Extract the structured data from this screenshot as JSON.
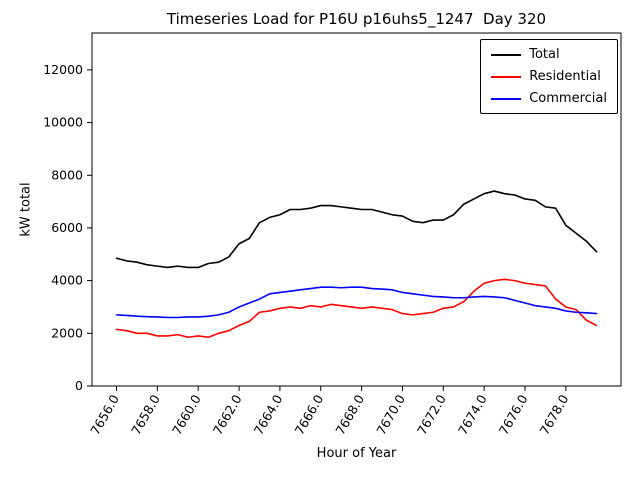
{
  "chart_data": {
    "type": "line",
    "title": "Timeseries Load for P16U p16uhs5_1247  Day 320",
    "xlabel": "Hour of Year",
    "ylabel": "kW total",
    "grid": false,
    "legend_position": "upper right",
    "xlim": [
      7654.8,
      7680.7
    ],
    "ylim": [
      0,
      13400
    ],
    "x_ticks": [
      7656,
      7658,
      7660,
      7662,
      7664,
      7666,
      7668,
      7670,
      7672,
      7674,
      7676,
      7678
    ],
    "x_tick_labels": [
      "7656.0",
      "7658.0",
      "7660.0",
      "7662.0",
      "7664.0",
      "7666.0",
      "7668.0",
      "7670.0",
      "7672.0",
      "7674.0",
      "7676.0",
      "7678.0"
    ],
    "y_ticks": [
      0,
      2000,
      4000,
      6000,
      8000,
      10000,
      12000
    ],
    "y_tick_labels": [
      "0",
      "2000",
      "4000",
      "6000",
      "8000",
      "10000",
      "12000"
    ],
    "x": [
      7656.0,
      7656.5,
      7657.0,
      7657.5,
      7658.0,
      7658.5,
      7659.0,
      7659.5,
      7660.0,
      7660.5,
      7661.0,
      7661.5,
      7662.0,
      7662.5,
      7663.0,
      7663.5,
      7664.0,
      7664.5,
      7665.0,
      7665.5,
      7666.0,
      7666.5,
      7667.0,
      7667.5,
      7668.0,
      7668.5,
      7669.0,
      7669.5,
      7670.0,
      7670.5,
      7671.0,
      7671.5,
      7672.0,
      7672.5,
      7673.0,
      7673.5,
      7674.0,
      7674.5,
      7675.0,
      7675.5,
      7676.0,
      7676.5,
      7677.0,
      7677.5,
      7678.0,
      7678.5,
      7679.0,
      7679.5
    ],
    "series": [
      {
        "name": "Total",
        "color": "#000000",
        "values": [
          4850,
          4750,
          4700,
          4600,
          4550,
          4500,
          4550,
          4500,
          4500,
          4650,
          4700,
          4900,
          5400,
          5600,
          6200,
          6400,
          6500,
          6700,
          6700,
          6750,
          6850,
          6850,
          6800,
          6750,
          6700,
          6700,
          6600,
          6500,
          6450,
          6250,
          6200,
          6300,
          6300,
          6500,
          6900,
          7100,
          7300,
          7400,
          7300,
          7250,
          7100,
          7050,
          6800,
          6750,
          6100,
          5800,
          5500,
          5100
        ]
      },
      {
        "name": "Residential",
        "color": "#ff0000",
        "values": [
          2150,
          2100,
          2000,
          2000,
          1900,
          1900,
          1950,
          1850,
          1900,
          1850,
          2000,
          2100,
          2300,
          2450,
          2800,
          2850,
          2950,
          3000,
          2950,
          3050,
          3000,
          3100,
          3050,
          3000,
          2950,
          3000,
          2950,
          2900,
          2750,
          2700,
          2750,
          2800,
          2950,
          3000,
          3200,
          3600,
          3900,
          4000,
          4050,
          4000,
          3900,
          3850,
          3800,
          3300,
          3000,
          2900,
          2500,
          2300
        ]
      },
      {
        "name": "Commercial",
        "color": "#0000ff",
        "values": [
          2700,
          2680,
          2650,
          2630,
          2620,
          2600,
          2600,
          2620,
          2620,
          2650,
          2700,
          2800,
          3000,
          3150,
          3300,
          3500,
          3550,
          3600,
          3650,
          3700,
          3750,
          3750,
          3730,
          3750,
          3750,
          3700,
          3680,
          3650,
          3550,
          3500,
          3450,
          3400,
          3380,
          3350,
          3350,
          3380,
          3400,
          3380,
          3350,
          3250,
          3150,
          3050,
          3000,
          2950,
          2850,
          2800,
          2780,
          2750
        ]
      }
    ]
  }
}
